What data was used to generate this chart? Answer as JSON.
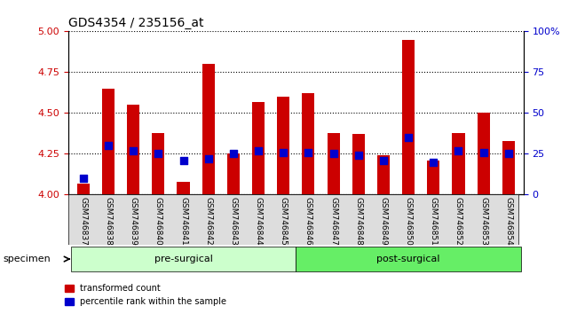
{
  "title": "GDS4354 / 235156_at",
  "samples": [
    "GSM746837",
    "GSM746838",
    "GSM746839",
    "GSM746840",
    "GSM746841",
    "GSM746842",
    "GSM746843",
    "GSM746844",
    "GSM746845",
    "GSM746846",
    "GSM746847",
    "GSM746848",
    "GSM746849",
    "GSM746850",
    "GSM746851",
    "GSM746852",
    "GSM746853",
    "GSM746854"
  ],
  "transformed_count": [
    4.07,
    4.65,
    4.55,
    4.38,
    4.08,
    4.8,
    4.25,
    4.57,
    4.6,
    4.62,
    4.38,
    4.37,
    4.24,
    4.95,
    4.21,
    4.38,
    4.5,
    4.33
  ],
  "percentile_rank": [
    10,
    30,
    27,
    25,
    21,
    22,
    25,
    27,
    26,
    26,
    25,
    24,
    21,
    35,
    20,
    27,
    26,
    25
  ],
  "bar_color": "#cc0000",
  "dot_color": "#0000cc",
  "ymin": 4.0,
  "ymax": 5.0,
  "yticks": [
    4.0,
    4.25,
    4.5,
    4.75,
    5.0
  ],
  "right_yticks": [
    0,
    25,
    50,
    75,
    100
  ],
  "right_ytick_labels": [
    "0",
    "25",
    "50",
    "75",
    "100%"
  ],
  "groups": [
    {
      "label": "pre-surgical",
      "start": 0,
      "end": 9,
      "color": "#ccffcc"
    },
    {
      "label": "post-surgical",
      "start": 9,
      "end": 18,
      "color": "#66ee66"
    }
  ],
  "specimen_label": "specimen",
  "legend_items": [
    {
      "label": "transformed count",
      "color": "#cc0000"
    },
    {
      "label": "percentile rank within the sample",
      "color": "#0000cc"
    }
  ],
  "background_color": "#ffffff",
  "plot_bg_color": "#ffffff",
  "tick_label_color_left": "#cc0000",
  "tick_label_color_right": "#0000cc",
  "bar_width": 0.5,
  "bar_bottom": 4.0,
  "dot_size": 30
}
